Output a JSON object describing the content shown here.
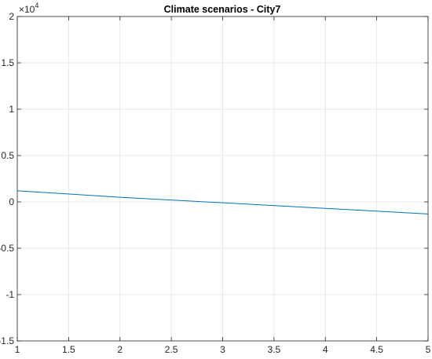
{
  "chart_data": {
    "type": "line",
    "title": "Climate scenarios - City7",
    "xlabel": "",
    "ylabel": "",
    "xlim": [
      1,
      5
    ],
    "ylim": [
      -15000,
      20000
    ],
    "y_exponent_label": {
      "base": "×10",
      "exponent": "4"
    },
    "grid": true,
    "x_ticks": [
      1,
      1.5,
      2,
      2.5,
      3,
      3.5,
      4,
      4.5,
      5
    ],
    "x_tick_labels": [
      "1",
      "1.5",
      "2",
      "2.5",
      "3",
      "3.5",
      "4",
      "4.5",
      "5"
    ],
    "y_ticks": [
      -15000,
      -10000,
      -5000,
      0,
      5000,
      10000,
      15000,
      20000
    ],
    "y_tick_labels": [
      "-1.5",
      "-1",
      "-0.5",
      "0",
      "0.5",
      "1",
      "1.5",
      "2"
    ],
    "series": [
      {
        "color": "#0072BD",
        "x": [
          1,
          2,
          3,
          4,
          5
        ],
        "y": [
          1200,
          500,
          -100,
          -700,
          -1300
        ]
      }
    ]
  }
}
